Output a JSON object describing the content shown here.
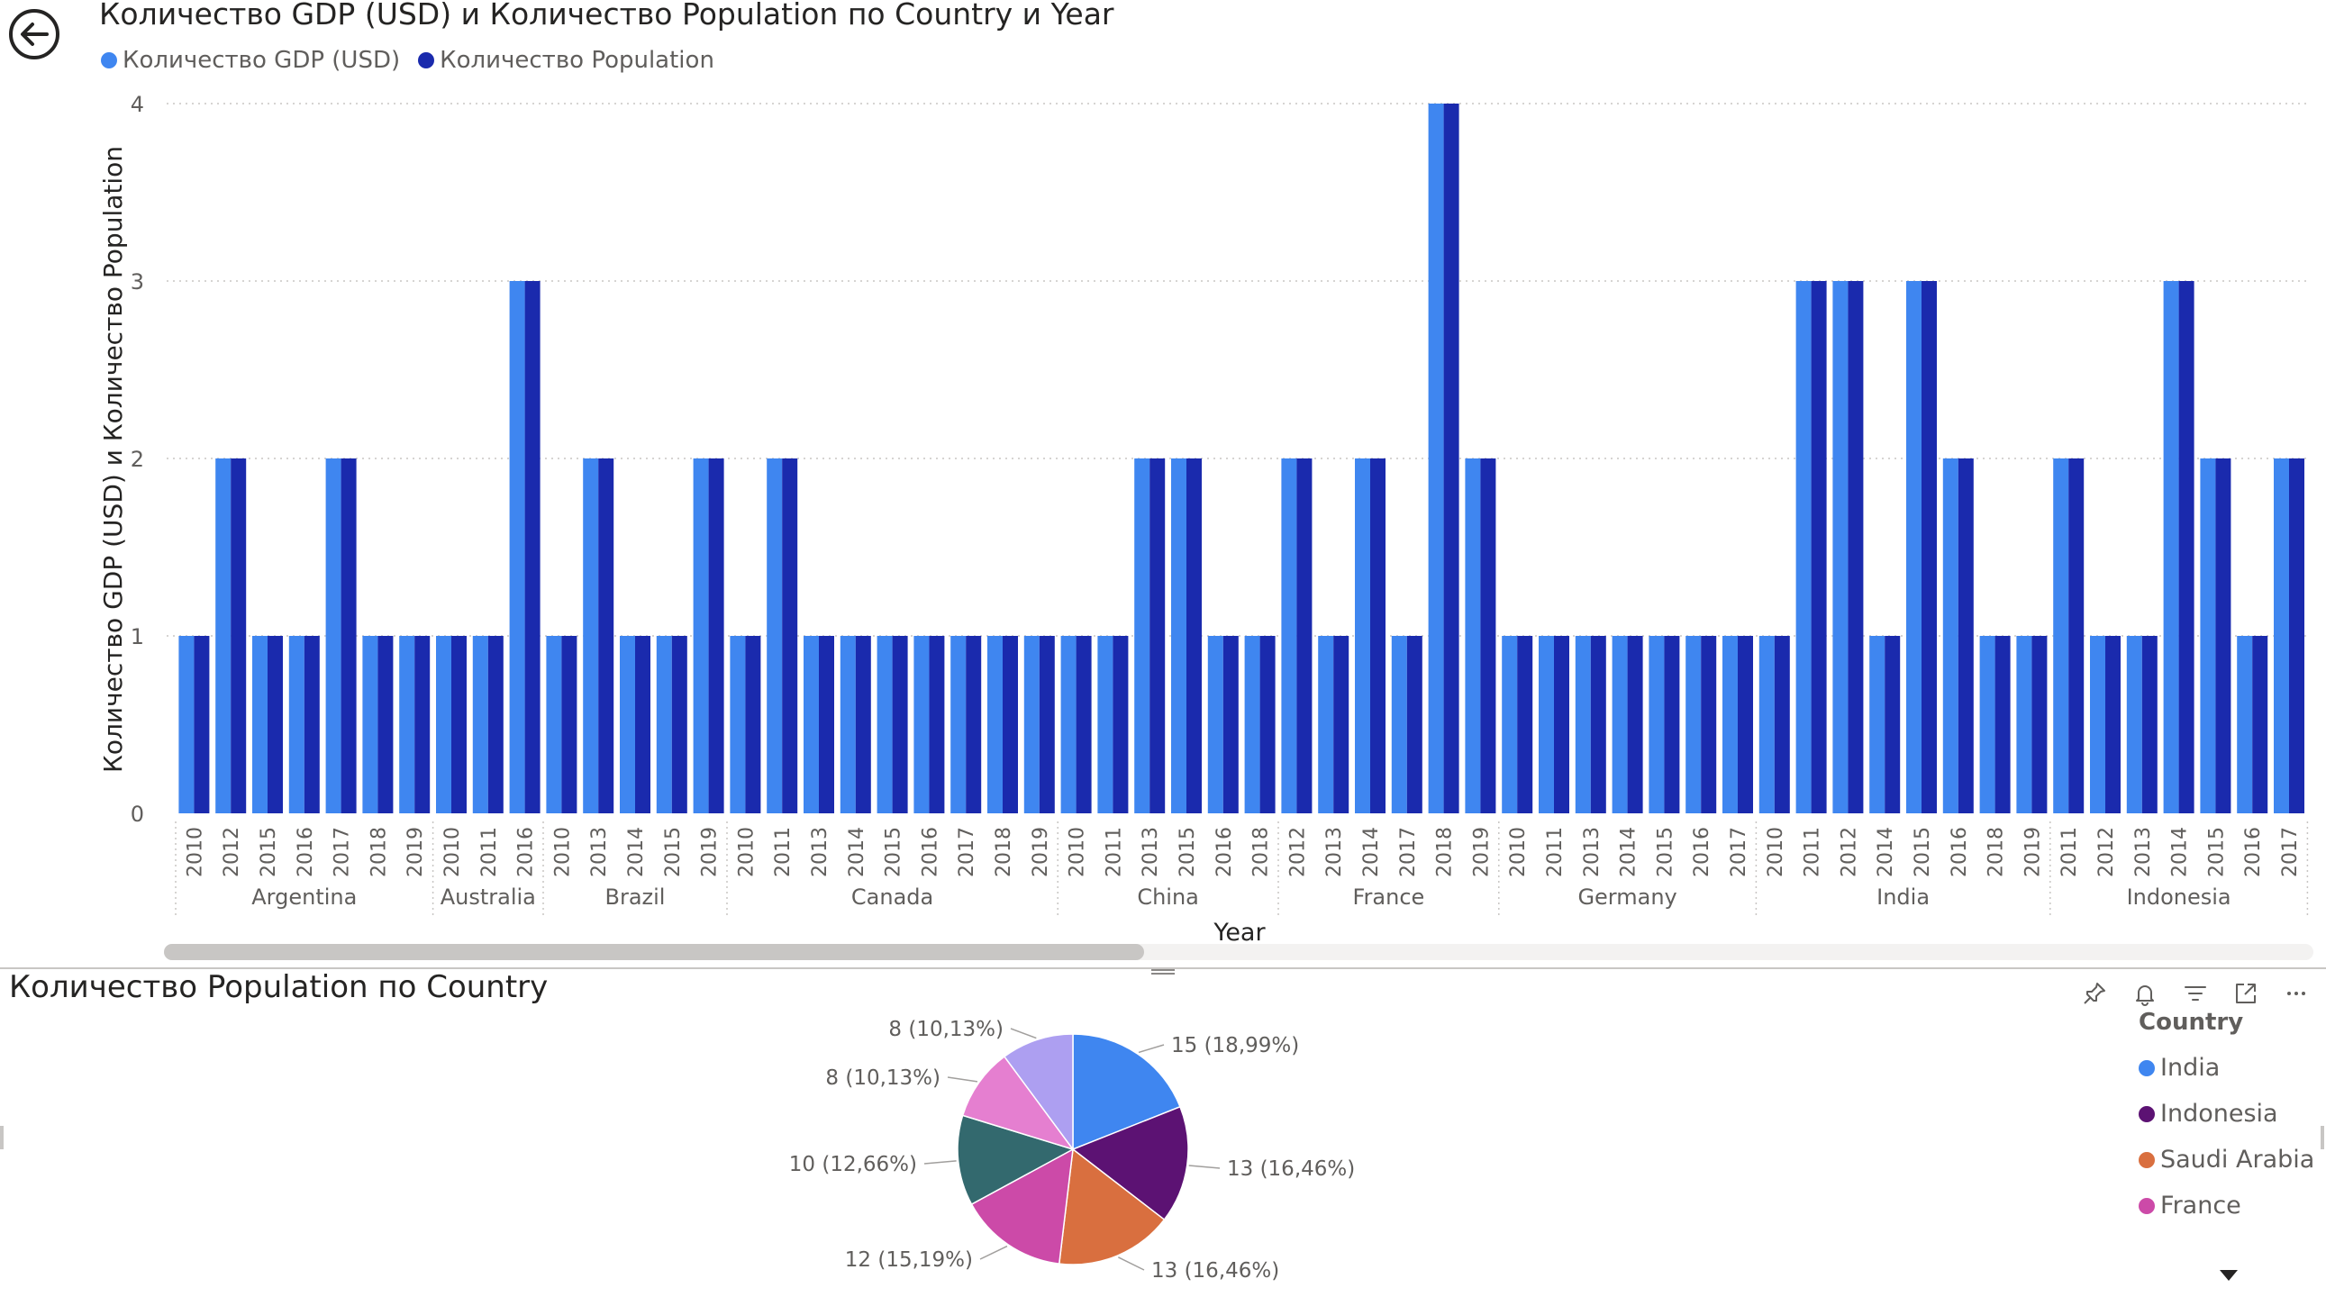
{
  "bar_visual": {
    "title": "Количество GDP (USD) и Количество Population по Country и Year"
  },
  "pie_visual": {
    "title": "Количество Population по Country"
  },
  "icons": [
    "back-arrow-icon",
    "pin-icon",
    "bell-icon",
    "filter-icon",
    "focus-mode-icon",
    "more-options-icon",
    "chevron-down-icon"
  ],
  "colors": {
    "gdp": "#3f86f0",
    "population": "#1a2aad",
    "india": "#3f86f0",
    "indonesia": "#5c1273",
    "saudi_arabia": "#d96f3f",
    "france": "#cc4aa8",
    "teal": "#33696e",
    "pink": "#e57fd0",
    "lavender": "#ad9ff1"
  },
  "chart_data": [
    {
      "type": "bar",
      "title": "Количество GDP (USD) и Количество Population по Country и Year",
      "xlabel": "Year",
      "ylabel": "Количество GDP (USD) и Количество Population",
      "ylim": [
        0,
        4
      ],
      "yticks": [
        "0",
        "1",
        "2",
        "3",
        "4"
      ],
      "grid": true,
      "legend_position": "top-left",
      "series": [
        {
          "name": "Количество GDP (USD)",
          "color": "#3f86f0"
        },
        {
          "name": "Количество Population",
          "color": "#1a2aad"
        }
      ],
      "groups": [
        {
          "country": "Argentina",
          "years": [
            "2010",
            "2012",
            "2015",
            "2016",
            "2017",
            "2018",
            "2019"
          ],
          "gdp": [
            1,
            2,
            1,
            1,
            2,
            1,
            1
          ],
          "population": [
            1,
            2,
            1,
            1,
            2,
            1,
            1
          ]
        },
        {
          "country": "Australia",
          "years": [
            "2010",
            "2011",
            "2016"
          ],
          "gdp": [
            1,
            1,
            3
          ],
          "population": [
            1,
            1,
            3
          ]
        },
        {
          "country": "Brazil",
          "years": [
            "2010",
            "2013",
            "2014",
            "2015",
            "2019"
          ],
          "gdp": [
            1,
            2,
            1,
            1,
            2
          ],
          "population": [
            1,
            2,
            1,
            1,
            2
          ]
        },
        {
          "country": "Canada",
          "years": [
            "2010",
            "2011",
            "2013",
            "2014",
            "2015",
            "2016",
            "2017",
            "2018",
            "2019"
          ],
          "gdp": [
            1,
            2,
            1,
            1,
            1,
            1,
            1,
            1,
            1
          ],
          "population": [
            1,
            2,
            1,
            1,
            1,
            1,
            1,
            1,
            1
          ]
        },
        {
          "country": "China",
          "years": [
            "2010",
            "2011",
            "2013",
            "2015",
            "2016",
            "2018"
          ],
          "gdp": [
            1,
            1,
            2,
            2,
            1,
            1
          ],
          "population": [
            1,
            1,
            2,
            2,
            1,
            1
          ]
        },
        {
          "country": "France",
          "years": [
            "2012",
            "2013",
            "2014",
            "2017",
            "2018",
            "2019"
          ],
          "gdp": [
            2,
            1,
            2,
            1,
            4,
            2
          ],
          "population": [
            2,
            1,
            2,
            1,
            4,
            2
          ]
        },
        {
          "country": "Germany",
          "years": [
            "2010",
            "2011",
            "2013",
            "2014",
            "2015",
            "2016",
            "2017"
          ],
          "gdp": [
            1,
            1,
            1,
            1,
            1,
            1,
            1
          ],
          "population": [
            1,
            1,
            1,
            1,
            1,
            1,
            1
          ]
        },
        {
          "country": "India",
          "years": [
            "2010",
            "2011",
            "2012",
            "2014",
            "2015",
            "2016",
            "2018",
            "2019"
          ],
          "gdp": [
            1,
            3,
            3,
            1,
            3,
            2,
            1,
            1
          ],
          "population": [
            1,
            3,
            3,
            1,
            3,
            2,
            1,
            1
          ]
        },
        {
          "country": "Indonesia",
          "years": [
            "2011",
            "2012",
            "2013",
            "2014",
            "2015",
            "2016",
            "2017"
          ],
          "gdp": [
            2,
            1,
            1,
            3,
            2,
            1,
            2
          ],
          "population": [
            2,
            1,
            1,
            3,
            2,
            1,
            2
          ]
        }
      ]
    },
    {
      "type": "pie",
      "title": "Количество Population по Country",
      "legend_title": "Country",
      "legend_position": "right",
      "slices": [
        {
          "name": "India",
          "value": 15,
          "label": "15 (18,99%)",
          "color": "#3f86f0"
        },
        {
          "name": "Indonesia",
          "value": 13,
          "label": "13 (16,46%)",
          "color": "#5c1273"
        },
        {
          "name": "Saudi Arabia",
          "value": 13,
          "label": "13 (16,46%)",
          "color": "#d96f3f"
        },
        {
          "name": "France",
          "value": 12,
          "label": "12 (15,19%)",
          "color": "#cc4aa8"
        },
        {
          "name": "",
          "value": 10,
          "label": "10 (12,66%)",
          "color": "#33696e"
        },
        {
          "name": "",
          "value": 8,
          "label": "8 (10,13%)",
          "color": "#e57fd0"
        },
        {
          "name": "",
          "value": 8,
          "label": "8 (10,13%)",
          "color": "#ad9ff1"
        }
      ]
    }
  ]
}
